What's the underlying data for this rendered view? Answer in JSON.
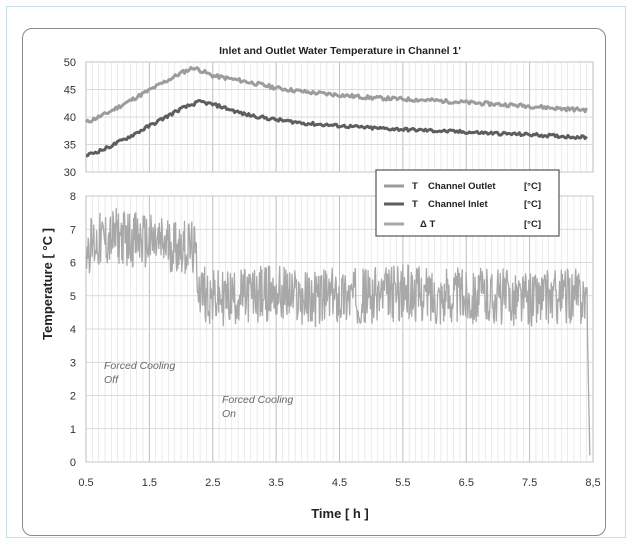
{
  "chart_data": {
    "type": "line",
    "title": "Inlet and Outlet Water Temperature  in  Channel 1'",
    "xlabel": "Time  [ h ]",
    "ylabel": "Temperature [ °C ]",
    "xlim": [
      0.5,
      8.5
    ],
    "x_ticks": [
      "0.5",
      "1.5",
      "2.5",
      "3.5",
      "4.5",
      "5.5",
      "6.5",
      "7.5",
      "8,5"
    ],
    "upper_panel": {
      "ylim": [
        30,
        50
      ],
      "y_ticks": [
        "30",
        "35",
        "40",
        "45",
        "50"
      ]
    },
    "lower_panel": {
      "ylim": [
        0,
        8
      ],
      "y_ticks": [
        "0",
        "1",
        "2",
        "3",
        "4",
        "5",
        "6",
        "7",
        "8"
      ]
    },
    "grid": true,
    "legend_position": "center-right",
    "legend": [
      {
        "symbol": "T",
        "label": "Channel Outlet",
        "unit": "[°C]",
        "color": "#9c9c9c"
      },
      {
        "symbol": "T",
        "label": "Channel Inlet",
        "unit": "[°C]",
        "color": "#5e5e5e"
      },
      {
        "symbol": "Δ T",
        "label": "",
        "unit": "[°C]",
        "color": "#a8a8a8"
      }
    ],
    "series": [
      {
        "name": "T  Channel Outlet",
        "panel": "upper",
        "color": "#9c9c9c",
        "x": [
          0.5,
          0.8,
          1.2,
          1.6,
          2.0,
          2.2,
          2.5,
          3.0,
          3.5,
          4.0,
          5.0,
          6.0,
          7.0,
          7.5,
          8.0,
          8.4
        ],
        "y": [
          39.0,
          40.5,
          43.0,
          45.5,
          48.0,
          49.0,
          47.5,
          46.5,
          45.3,
          44.5,
          43.5,
          43.0,
          42.3,
          42.0,
          41.5,
          41.3
        ]
      },
      {
        "name": "T  Channel Inlet",
        "panel": "upper",
        "color": "#5e5e5e",
        "x": [
          0.5,
          0.8,
          1.2,
          1.6,
          2.0,
          2.3,
          2.6,
          3.0,
          3.5,
          4.0,
          5.0,
          6.0,
          7.0,
          7.5,
          8.0,
          8.4
        ],
        "y": [
          33.0,
          34.2,
          36.5,
          39.0,
          41.5,
          42.8,
          42.0,
          40.5,
          39.5,
          38.8,
          38.0,
          37.5,
          37.0,
          36.8,
          36.5,
          36.3
        ]
      },
      {
        "name": "Δ T",
        "panel": "lower",
        "color": "#a8a8a8",
        "x": [
          0.5,
          1.0,
          1.5,
          2.0,
          2.2,
          2.3,
          2.5,
          3.0,
          3.5,
          4.0,
          4.5,
          5.0,
          5.5,
          6.0,
          6.5,
          7.0,
          7.5,
          8.0,
          8.4,
          8.45
        ],
        "y": [
          6.5,
          6.8,
          6.6,
          6.5,
          6.4,
          5.2,
          4.9,
          5.0,
          5.1,
          4.9,
          5.0,
          5.0,
          5.1,
          5.0,
          5.0,
          5.0,
          4.9,
          5.0,
          5.0,
          0.2
        ]
      }
    ],
    "annotations": [
      {
        "text": "Forced Cooling",
        "text2": "Off"
      },
      {
        "text": "Forced Cooling",
        "text2": "On"
      }
    ]
  }
}
